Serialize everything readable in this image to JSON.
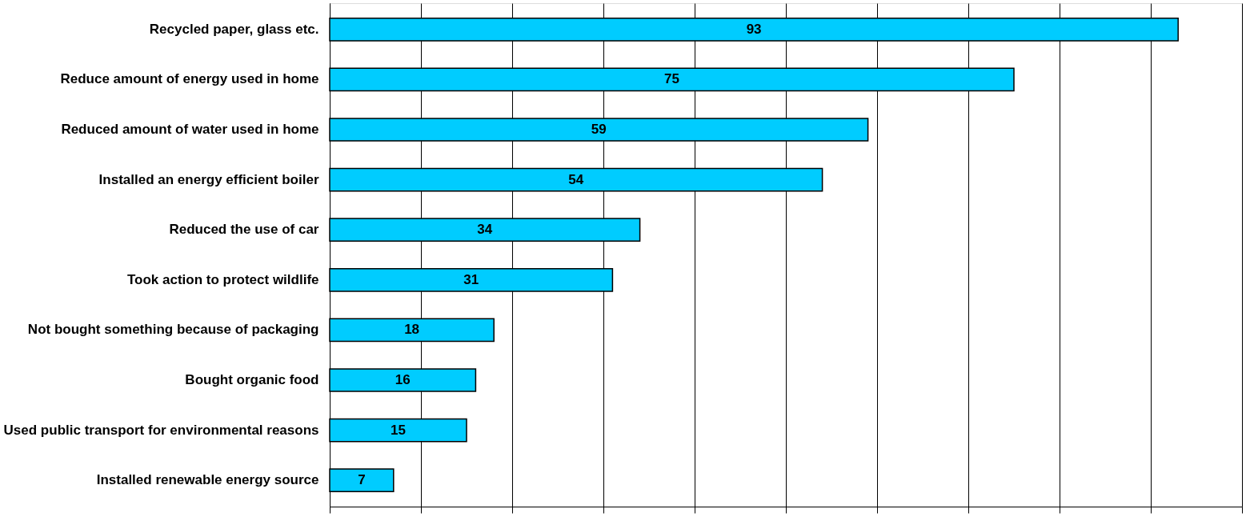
{
  "chart_data": {
    "type": "bar",
    "orientation": "horizontal",
    "categories": [
      "Recycled paper, glass etc.",
      "Reduce amount of energy used in home",
      "Reduced amount of water used in home",
      "Installed an energy efficient boiler",
      "Reduced the use of car",
      "Took action to protect wildlife",
      "Not bought something because of packaging",
      "Bought organic food",
      "Used public transport for environmental reasons",
      "Installed renewable energy source"
    ],
    "values": [
      93,
      75,
      59,
      54,
      34,
      31,
      18,
      16,
      15,
      7
    ],
    "color": "#00ccff",
    "data_labels": true,
    "xlim": [
      0,
      100
    ],
    "xticks": [
      {
        "value": 0,
        "label": null
      },
      {
        "value": 10,
        "label": null
      },
      {
        "value": 20,
        "label": null
      },
      {
        "value": 30,
        "label": null
      },
      {
        "value": 40,
        "label": null
      },
      {
        "value": 50,
        "label": null
      },
      {
        "value": 60,
        "label": null
      },
      {
        "value": 70,
        "label": null
      },
      {
        "value": 80,
        "label": null
      },
      {
        "value": 90,
        "label": null
      },
      {
        "value": 100,
        "label": null
      }
    ],
    "tick_labels": "y",
    "grid": "x"
  }
}
